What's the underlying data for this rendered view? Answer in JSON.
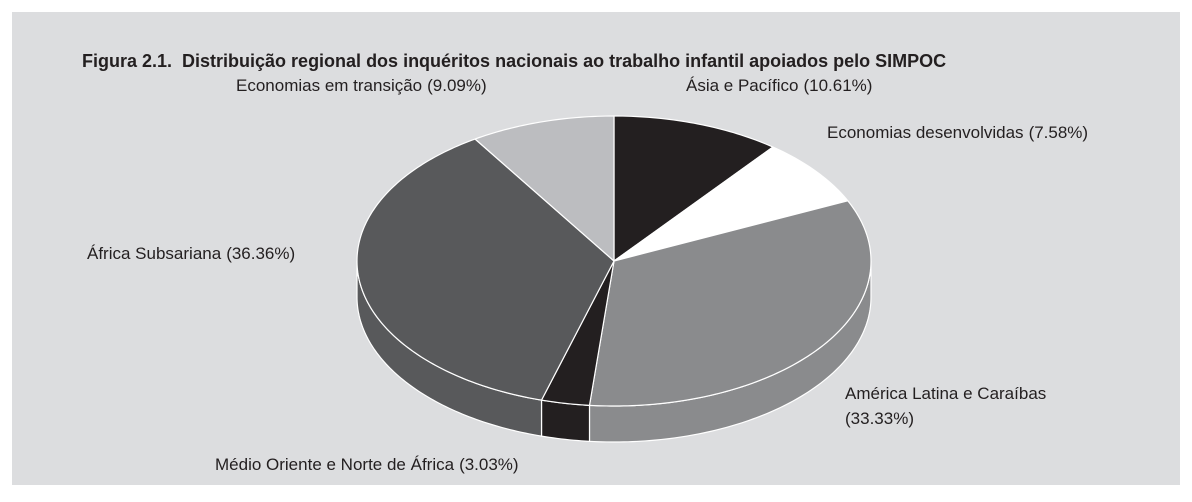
{
  "chart_data": {
    "type": "pie",
    "title": "Figura 2.1.  Distribuição regional dos inquéritos nacionais ao trabalho infantil apoiados pelo SIMPOC",
    "categories": [
      "Ásia e Pacífico",
      "Economias desenvolvidas",
      "América Latina e Caraíbas",
      "Médio Oriente e Norte de África",
      "África Subsariana",
      "Economias em transição"
    ],
    "values": [
      10.61,
      7.58,
      33.33,
      3.03,
      36.36,
      9.09
    ],
    "value_labels": [
      "(10.61%)",
      "(7.58%)",
      "(33.33%)",
      "(3.03%)",
      "(36.36%)",
      "(9.09%)"
    ],
    "colors": [
      "#231f20",
      "#ffffff",
      "#8a8b8d",
      "#231f20",
      "#58595b",
      "#bcbdc0"
    ]
  }
}
